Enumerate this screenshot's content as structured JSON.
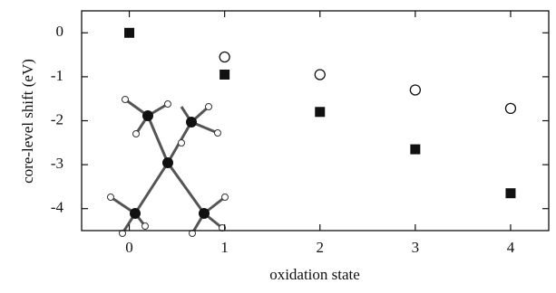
{
  "chart_data": {
    "type": "scatter",
    "x_label": "oxidation state",
    "y_label": "core-level shift (eV)",
    "xlim": [
      -0.5,
      4.4
    ],
    "ylim": [
      -4.5,
      0.5
    ],
    "xticks": [
      0,
      1,
      2,
      3,
      4
    ],
    "yticks": [
      0,
      -1,
      -2,
      -3,
      -4
    ],
    "series": [
      {
        "marker": "square",
        "color": "#111111",
        "x": [
          0,
          1,
          2,
          3,
          4
        ],
        "values": [
          0,
          -0.95,
          -1.8,
          -2.65,
          -3.65
        ]
      },
      {
        "marker": "open-circle",
        "color": "#111111",
        "x": [
          1,
          2,
          3,
          4
        ],
        "values": [
          -0.55,
          -0.95,
          -1.3,
          -1.72
        ]
      }
    ]
  }
}
